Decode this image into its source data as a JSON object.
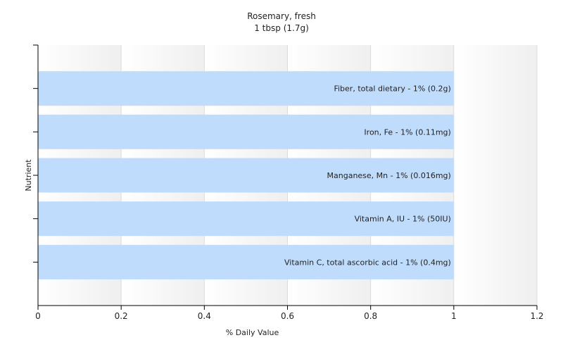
{
  "chart_data": {
    "type": "bar",
    "orientation": "horizontal",
    "title": "Rosemary, fresh",
    "subtitle": "1 tbsp (1.7g)",
    "xlabel": "% Daily Value",
    "ylabel": "Nutrient",
    "xlim": [
      0,
      1.2
    ],
    "xticks": [
      "0",
      "0.2",
      "0.4",
      "0.6",
      "0.8",
      "1",
      "1.2"
    ],
    "grid": true,
    "bar_color": "#c0dcfd",
    "categories": [
      "Fiber, total dietary",
      "Iron, Fe",
      "Manganese, Mn",
      "Vitamin A, IU",
      "Vitamin C, total ascorbic acid"
    ],
    "values": [
      1,
      1,
      1,
      1,
      1
    ],
    "bar_labels": [
      "Fiber, total dietary - 1% (0.2g)",
      "Iron, Fe - 1% (0.11mg)",
      "Manganese, Mn - 1% (0.016mg)",
      "Vitamin A, IU - 1% (50IU)",
      "Vitamin C, total ascorbic acid - 1% (0.4mg)"
    ]
  }
}
